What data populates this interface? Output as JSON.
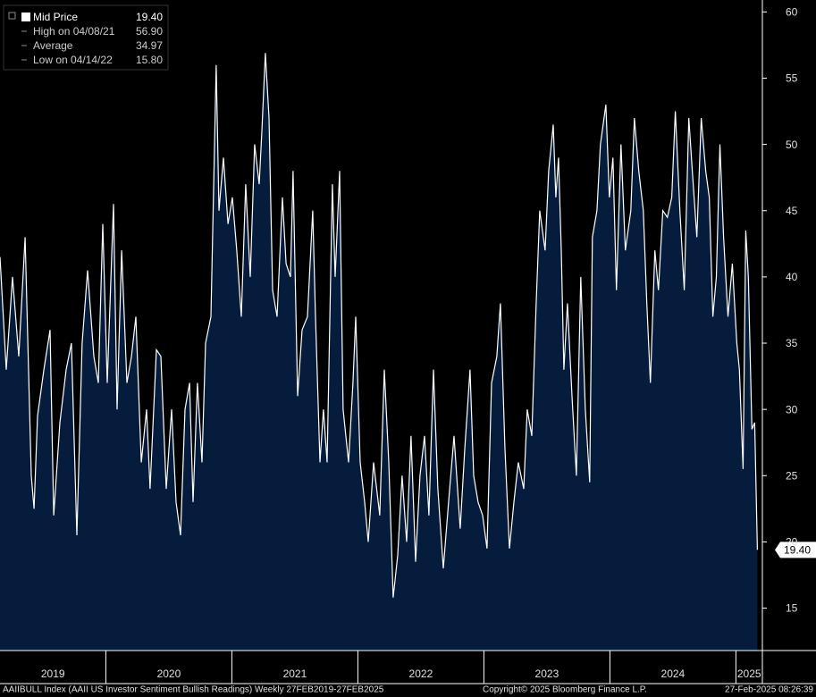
{
  "chart_data": {
    "type": "area",
    "legend": [
      {
        "name": "Mid Price",
        "value": "19.40"
      },
      {
        "name": "High on 04/08/21",
        "value": "56.90"
      },
      {
        "name": "Average",
        "value": "34.97"
      },
      {
        "name": "Low on 04/14/22",
        "value": "15.80"
      }
    ],
    "last_label": "19.40",
    "footer": [
      "AAIIBULL Index (AAII US Investor Sentiment Bullish Readings)  Weekly 27FEB2019-27FEB2025",
      "Copyright© 2025 Bloomberg Finance L.P.",
      "27-Feb-2025 08:26:39"
    ],
    "series": [
      {
        "name": "Mid Price",
        "color": "#ffffff",
        "fill": "#061c3c",
        "x": [
          2019.16,
          2019.21,
          2019.259,
          2019.309,
          2019.359,
          2019.408,
          2019.43,
          2019.458,
          2019.508,
          2019.557,
          2019.586,
          2019.635,
          2019.685,
          2019.727,
          2019.77,
          2019.812,
          2019.855,
          2019.905,
          2019.94,
          2019.976,
          2020.011,
          2020.061,
          2020.089,
          2020.125,
          2020.167,
          2020.203,
          2020.238,
          2020.281,
          2020.323,
          2020.351,
          2020.401,
          2020.437,
          2020.479,
          2020.522,
          2020.557,
          2020.593,
          2020.628,
          2020.664,
          2020.692,
          2020.727,
          2020.763,
          2020.791,
          2020.834,
          2020.876,
          2020.898,
          2020.933,
          2020.969,
          2021.004,
          2021.039,
          2021.075,
          2021.11,
          2021.146,
          2021.181,
          2021.217,
          2021.238,
          2021.266,
          2021.295,
          2021.323,
          2021.359,
          2021.401,
          2021.43,
          2021.465,
          2021.486,
          2021.522,
          2021.557,
          2021.6,
          2021.642,
          2021.664,
          2021.699,
          2021.727,
          2021.756,
          2021.798,
          2021.82,
          2021.855,
          2021.883,
          2021.926,
          2021.961,
          2021.983,
          2022.018,
          2022.054,
          2022.082,
          2022.125,
          2022.174,
          2022.21,
          2022.245,
          2022.28,
          2022.316,
          2022.351,
          2022.387,
          2022.422,
          2022.458,
          2022.493,
          2022.529,
          2022.564,
          2022.6,
          2022.635,
          2022.678,
          2022.72,
          2022.763,
          2022.812,
          2022.848,
          2022.89,
          2022.919,
          2022.954,
          2022.99,
          2023.025,
          2023.061,
          2023.103,
          2023.131,
          2023.167,
          2023.203,
          2023.238,
          2023.273,
          2023.316,
          2023.344,
          2023.38,
          2023.415,
          2023.443,
          2023.486,
          2023.514,
          2023.55,
          2023.571,
          2023.592,
          2023.614,
          2023.635,
          2023.663,
          2023.699,
          2023.734,
          2023.769,
          2023.805,
          2023.84,
          2023.861,
          2023.897,
          2023.925,
          2023.968,
          2023.996,
          2024.024,
          2024.052,
          2024.088,
          2024.123,
          2024.166,
          2024.194,
          2024.229,
          2024.265,
          2024.293,
          2024.321,
          2024.357,
          2024.385,
          2024.42,
          2024.456,
          2024.491,
          2024.519,
          2024.555,
          2024.59,
          2024.626,
          2024.654,
          2024.69,
          2024.725,
          2024.76,
          2024.789,
          2024.817,
          2024.845,
          2024.873,
          2024.902,
          2024.937,
          2024.972,
          2025.007,
          2025.028,
          2025.057,
          2025.078,
          2025.099,
          2025.127,
          2025.149,
          2025.17
        ],
        "values": [
          41.5,
          33,
          40,
          34,
          43,
          25,
          22.5,
          29.5,
          33,
          36,
          22,
          29,
          33,
          35,
          20.5,
          35,
          40.5,
          34,
          32,
          44,
          32,
          45.5,
          30,
          42,
          32,
          34,
          37,
          26,
          30,
          24,
          34.5,
          34,
          24,
          30,
          23,
          20.5,
          30,
          32,
          23,
          32,
          26,
          35,
          37,
          56,
          45,
          49,
          44,
          46,
          42,
          37,
          47,
          40,
          50,
          47,
          51,
          56.9,
          52,
          39,
          37,
          46,
          41,
          40,
          48,
          31,
          36,
          37,
          45,
          37,
          26,
          30,
          26,
          47,
          40,
          48,
          30,
          26,
          32,
          37,
          26,
          23,
          20,
          26,
          22,
          33,
          26,
          15.8,
          19,
          25,
          20,
          28,
          18.5,
          25,
          28,
          22,
          33,
          24,
          18,
          23,
          28,
          21,
          27,
          33,
          25,
          23,
          22,
          19.5,
          32,
          34,
          38,
          27,
          19.5,
          23,
          26,
          24,
          30,
          28,
          38,
          45,
          42,
          48,
          51.5,
          46,
          49,
          42,
          33,
          38,
          31,
          25,
          40,
          30,
          24.5,
          43,
          45,
          50,
          53,
          46,
          49,
          39,
          50,
          42,
          45,
          52,
          48,
          45,
          38,
          32,
          42,
          39,
          45,
          44.5,
          46,
          52.5,
          45,
          39,
          52,
          48,
          43,
          52,
          48,
          46,
          37,
          40,
          50,
          43,
          37,
          41,
          35,
          33,
          25.5,
          43.5,
          40,
          28.5,
          29,
          19.4
        ]
      }
    ],
    "xlim": [
      2019.16,
      2025.21
    ],
    "xticks": [
      {
        "value": 2019,
        "label": "2019"
      },
      {
        "value": 2020,
        "label": "2020"
      },
      {
        "value": 2021,
        "label": "2021"
      },
      {
        "value": 2022,
        "label": "2022"
      },
      {
        "value": 2023,
        "label": "2023"
      },
      {
        "value": 2024,
        "label": "2024"
      },
      {
        "value": 2025,
        "label": "2025"
      }
    ],
    "ylim": [
      11.8,
      60.9
    ],
    "yticks": [
      15,
      20,
      25,
      30,
      35,
      40,
      45,
      50,
      55,
      60
    ]
  }
}
